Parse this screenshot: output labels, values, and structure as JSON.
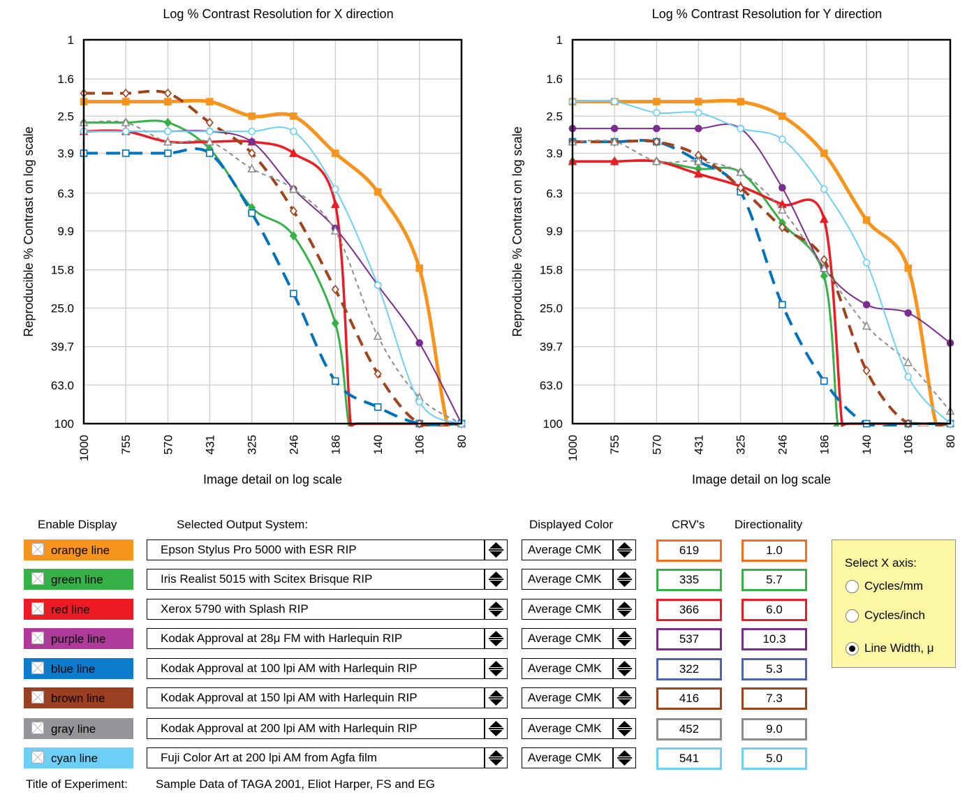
{
  "chart_data": [
    {
      "type": "line",
      "title": "Log % Contrast Resolution for X direction",
      "xlabel": "Image detail on log scale",
      "ylabel": "Reproducible % Contrast on log scale",
      "x_ticks": [
        "1000",
        "755",
        "570",
        "431",
        "325",
        "246",
        "186",
        "140",
        "106",
        "80"
      ],
      "y_ticks": [
        "1",
        "1.6",
        "2.5",
        "3.9",
        "6.3",
        "9.9",
        "15.8",
        "25.0",
        "39.7",
        "63.0",
        "100"
      ],
      "x_scale": "log, reversed",
      "y_scale": "log, inverted",
      "xlim": [
        1000,
        80
      ],
      "ylim": [
        1,
        100
      ],
      "grid": true,
      "series": [
        {
          "name": "orange line",
          "color": "#f7941d",
          "width": 5,
          "dash": "",
          "marker": "square-filled",
          "x": [
            1000,
            755,
            570,
            431,
            325,
            246,
            186,
            140,
            106,
            88,
            80
          ],
          "y": [
            2.1,
            2.1,
            2.1,
            2.1,
            2.5,
            2.5,
            3.9,
            6.2,
            15.5,
            100,
            100
          ],
          "markers": 9
        },
        {
          "name": "green line",
          "color": "#36b148",
          "width": 3,
          "dash": "",
          "marker": "diamond-filled",
          "x": [
            1000,
            755,
            570,
            431,
            325,
            246,
            186,
            170,
            160,
            80
          ],
          "y": [
            2.7,
            2.7,
            2.7,
            3.7,
            7.5,
            10.5,
            30,
            100,
            100,
            100
          ],
          "markers": 7
        },
        {
          "name": "red line",
          "color": "#ed1c24",
          "width": 3.5,
          "dash": "",
          "marker": "triangle-filled",
          "x": [
            1000,
            755,
            570,
            431,
            325,
            246,
            186,
            168,
            160,
            80
          ],
          "y": [
            3.0,
            3.0,
            3.4,
            3.4,
            3.4,
            3.9,
            7.2,
            100,
            100,
            100
          ],
          "markers": 7
        },
        {
          "name": "purple line",
          "color": "#7b2d8e",
          "width": 2,
          "dash": "",
          "marker": "circle-filled",
          "x": [
            1000,
            755,
            570,
            431,
            325,
            246,
            186,
            140,
            106,
            80
          ],
          "y": [
            3.0,
            3.0,
            3.0,
            3.0,
            3.4,
            6.0,
            9.6,
            19,
            38,
            100
          ],
          "markers": 10
        },
        {
          "name": "blue line",
          "color": "#0072bc",
          "width": 4,
          "dash": "20,12",
          "marker": "square-open",
          "x": [
            1000,
            755,
            570,
            431,
            325,
            246,
            186,
            140,
            106,
            80
          ],
          "y": [
            3.9,
            3.9,
            3.9,
            3.9,
            8.0,
            21,
            60,
            82,
            100,
            100
          ],
          "markers": 10
        },
        {
          "name": "brown line",
          "color": "#a0421c",
          "width": 4,
          "dash": "16,10",
          "marker": "diamond-open",
          "x": [
            1000,
            755,
            570,
            431,
            325,
            246,
            186,
            140,
            106,
            80
          ],
          "y": [
            1.9,
            1.9,
            1.9,
            2.7,
            3.9,
            7.8,
            20,
            55,
            100,
            100
          ],
          "markers": 10
        },
        {
          "name": "gray line",
          "color": "#8c8c8c",
          "width": 2,
          "dash": "6,5",
          "marker": "triangle-open",
          "x": [
            1000,
            755,
            570,
            431,
            325,
            246,
            186,
            140,
            106,
            80
          ],
          "y": [
            2.7,
            2.7,
            3.4,
            3.4,
            4.7,
            6.0,
            9.9,
            35,
            73,
            100
          ],
          "markers": 10
        },
        {
          "name": "cyan line",
          "color": "#6dcff6",
          "width": 2,
          "dash": "",
          "marker": "circle-open",
          "x": [
            1000,
            755,
            570,
            431,
            325,
            246,
            186,
            140,
            106,
            80
          ],
          "y": [
            3.0,
            3.0,
            3.0,
            3.0,
            3.0,
            3.0,
            6.0,
            19,
            77,
            100
          ],
          "markers": 10
        }
      ]
    },
    {
      "type": "line",
      "title": "Log % Contrast Resolution for Y direction",
      "xlabel": "Image detail on log scale",
      "ylabel": "Reproducible % Contrast on log scale",
      "x_ticks": [
        "1000",
        "755",
        "570",
        "431",
        "325",
        "246",
        "186",
        "140",
        "106",
        "80"
      ],
      "y_ticks": [
        "1",
        "1.6",
        "2.5",
        "3.9",
        "6.3",
        "9.9",
        "15.8",
        "25.0",
        "39.7",
        "63.0",
        "100"
      ],
      "x_scale": "log, reversed",
      "y_scale": "log, inverted",
      "xlim": [
        1000,
        80
      ],
      "ylim": [
        1,
        100
      ],
      "grid": true,
      "series": [
        {
          "name": "orange line",
          "color": "#f7941d",
          "width": 5,
          "dash": "",
          "marker": "square-filled",
          "x": [
            1000,
            755,
            570,
            431,
            325,
            246,
            186,
            140,
            106,
            88,
            80
          ],
          "y": [
            2.1,
            2.1,
            2.1,
            2.1,
            2.1,
            2.5,
            3.9,
            8.7,
            15.5,
            100,
            100
          ],
          "markers": 9
        },
        {
          "name": "green line",
          "color": "#36b148",
          "width": 3,
          "dash": "",
          "marker": "diamond-filled",
          "x": [
            1000,
            755,
            570,
            431,
            325,
            246,
            186,
            170,
            165,
            80
          ],
          "y": [
            4.3,
            4.3,
            4.3,
            4.7,
            4.9,
            9.0,
            17,
            100,
            100,
            100
          ],
          "markers": 7
        },
        {
          "name": "red line",
          "color": "#ed1c24",
          "width": 3.5,
          "dash": "",
          "marker": "triangle-filled",
          "x": [
            1000,
            755,
            570,
            431,
            325,
            246,
            186,
            165,
            158,
            80
          ],
          "y": [
            4.3,
            4.3,
            4.3,
            5.0,
            5.8,
            7.2,
            8.6,
            100,
            100,
            100
          ],
          "markers": 7
        },
        {
          "name": "purple line",
          "color": "#7b2d8e",
          "width": 2,
          "dash": "",
          "marker": "circle-filled",
          "x": [
            1000,
            755,
            570,
            431,
            325,
            246,
            186,
            140,
            106,
            80
          ],
          "y": [
            2.9,
            2.9,
            2.9,
            2.9,
            2.9,
            5.9,
            15.5,
            24,
            26.5,
            38
          ],
          "markers": 10
        },
        {
          "name": "blue line",
          "color": "#0072bc",
          "width": 4,
          "dash": "20,12",
          "marker": "square-open",
          "x": [
            1000,
            755,
            570,
            431,
            325,
            246,
            186,
            140,
            106,
            80
          ],
          "y": [
            3.4,
            3.4,
            3.4,
            4.3,
            6.2,
            24,
            60,
            100,
            100,
            100
          ],
          "markers": 10
        },
        {
          "name": "brown line",
          "color": "#a0421c",
          "width": 4,
          "dash": "16,10",
          "marker": "diamond-open",
          "x": [
            1000,
            755,
            570,
            431,
            325,
            246,
            186,
            140,
            106,
            80
          ],
          "y": [
            3.4,
            3.4,
            3.4,
            4.0,
            5.9,
            9.5,
            14,
            53,
            100,
            100
          ],
          "markers": 10
        },
        {
          "name": "gray line",
          "color": "#8c8c8c",
          "width": 2,
          "dash": "6,5",
          "marker": "triangle-open",
          "x": [
            1000,
            755,
            570,
            431,
            325,
            246,
            186,
            140,
            106,
            80
          ],
          "y": [
            3.4,
            3.4,
            4.3,
            4.3,
            4.9,
            7.7,
            15.5,
            31,
            48,
            86
          ],
          "markers": 10
        },
        {
          "name": "cyan line",
          "color": "#6dcff6",
          "width": 2,
          "dash": "",
          "marker": "circle-open",
          "x": [
            1000,
            755,
            570,
            431,
            325,
            246,
            186,
            140,
            106,
            80
          ],
          "y": [
            2.1,
            2.1,
            2.4,
            2.4,
            2.9,
            3.3,
            6.0,
            14.5,
            57,
            100
          ],
          "markers": 10
        }
      ]
    }
  ],
  "controls": {
    "headers": {
      "enable": "Enable Display",
      "system": "Selected Output System:",
      "color": "Displayed Color",
      "crv": "CRV's",
      "directionality": "Directionality"
    },
    "rows": [
      {
        "label": "orange line",
        "color": "#f7941d",
        "system": "Epson Stylus Pro 5000 with ESR RIP",
        "displayed_color": "Average CMK",
        "crv": "619",
        "directionality": "1.0",
        "box_color": "#f26d21"
      },
      {
        "label": "green line",
        "color": "#36b148",
        "system": "Iris Realist 5015 with Scitex Brisque RIP",
        "displayed_color": "Average CMK",
        "crv": "335",
        "directionality": "5.7",
        "box_color": "#36b148"
      },
      {
        "label": "red line",
        "color": "#ed1c24",
        "system": "Xerox 5790 with Splash RIP",
        "displayed_color": "Average CMK",
        "crv": "366",
        "directionality": "6.0",
        "box_color": "#ed1c24"
      },
      {
        "label": "purple line",
        "color": "#b03a9b",
        "system": "Kodak Approval at 28μ FM with Harlequin RIP",
        "displayed_color": "Average CMK",
        "crv": "537",
        "directionality": "10.3",
        "box_color": "#7b2d8e"
      },
      {
        "label": "blue line",
        "color": "#0c7bcb",
        "system": "Kodak Approval at 100 lpi AM with Harlequin RIP",
        "displayed_color": "Average CMK",
        "crv": "322",
        "directionality": "5.3",
        "box_color": "#4b64ac"
      },
      {
        "label": "brown line",
        "color": "#9b3f22",
        "system": "Kodak Approval at 150 lpi AM with Harlequin RIP",
        "displayed_color": "Average CMK",
        "crv": "416",
        "directionality": "7.3",
        "box_color": "#a0421c"
      },
      {
        "label": "gray line",
        "color": "#939598",
        "system": "Kodak Approval at 200 lpi AM with Harlequin RIP",
        "displayed_color": "Average CMK",
        "crv": "452",
        "directionality": "9.0",
        "box_color": "#8c8c8c"
      },
      {
        "label": "cyan line",
        "color": "#6dcff6",
        "system": "Fuji Color Art at 200 lpi AM from Agfa film",
        "displayed_color": "Average CMK",
        "crv": "541",
        "directionality": "5.0",
        "box_color": "#6dcff6"
      }
    ],
    "x_axis_panel": {
      "title": "Select X axis:",
      "options": [
        {
          "label": "Cycles/mm",
          "selected": false
        },
        {
          "label": "Cycles/inch",
          "selected": false
        },
        {
          "label": "Line Width, μ",
          "selected": true
        }
      ]
    },
    "footer": {
      "label": "Title of Experiment:",
      "value": "Sample Data of TAGA 2001, Eliot Harper, FS and EG"
    }
  }
}
